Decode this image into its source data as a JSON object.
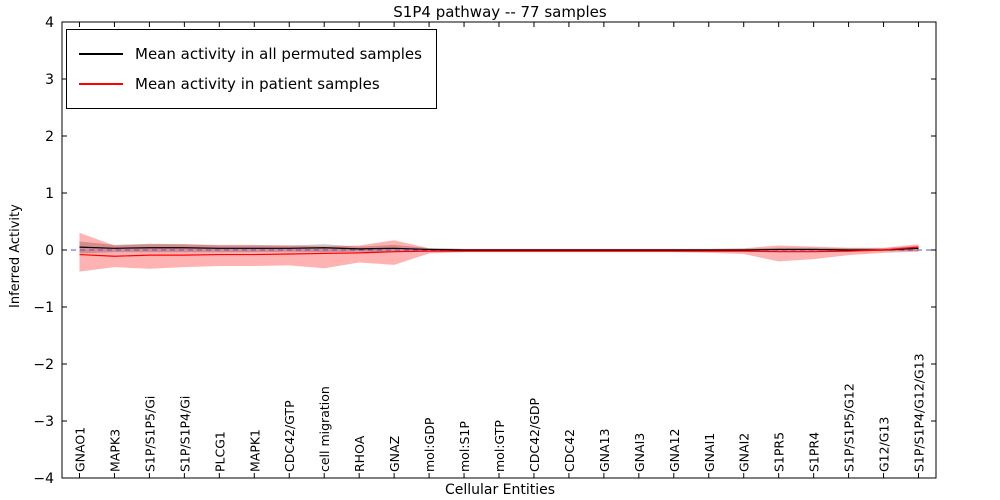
{
  "chart_data": {
    "type": "line",
    "title": "S1P4 pathway -- 77 samples",
    "xlabel": "Cellular Entities",
    "ylabel": "Inferred Activity",
    "ylim": [
      -4,
      4
    ],
    "yticks": [
      -4,
      -3,
      -2,
      -1,
      0,
      1,
      2,
      3,
      4
    ],
    "grid": false,
    "legend_position": "upper left",
    "refline": {
      "y": 0,
      "color": "#5555dd",
      "style": "dashed"
    },
    "categories": [
      "GNAO1",
      "MAPK3",
      "S1P/S1P5/Gi",
      "S1P/S1P4/Gi",
      "PLCG1",
      "MAPK1",
      "CDC42/GTP",
      "cell migration",
      "RHOA",
      "GNAZ",
      "mol:GDP",
      "mol:S1P",
      "mol:GTP",
      "CDC42/GDP",
      "CDC42",
      "GNA13",
      "GNAI3",
      "GNA12",
      "GNAI1",
      "GNAI2",
      "S1PR5",
      "S1PR4",
      "S1P/S1P5/G12",
      "G12/G13",
      "S1P/S1P4/G12/G13"
    ],
    "series": [
      {
        "name": "Mean activity in all permuted samples",
        "color": "#000000",
        "band_alpha": 0.22,
        "values": [
          0.05,
          0.03,
          0.04,
          0.04,
          0.03,
          0.03,
          0.03,
          0.04,
          0.02,
          0.03,
          0.01,
          0.0,
          0.0,
          0.0,
          0.0,
          0.0,
          0.0,
          0.0,
          0.0,
          0.0,
          0.01,
          0.01,
          0.0,
          0.0,
          0.03
        ],
        "band_upper": [
          0.15,
          0.09,
          0.11,
          0.1,
          0.09,
          0.09,
          0.08,
          0.1,
          0.06,
          0.09,
          0.03,
          0.02,
          0.02,
          0.02,
          0.02,
          0.02,
          0.02,
          0.02,
          0.02,
          0.02,
          0.04,
          0.04,
          0.03,
          0.03,
          0.07
        ],
        "band_lower": [
          -0.06,
          -0.04,
          -0.04,
          -0.04,
          -0.04,
          -0.04,
          -0.03,
          -0.04,
          -0.03,
          -0.04,
          -0.02,
          -0.02,
          -0.02,
          -0.02,
          -0.02,
          -0.02,
          -0.02,
          -0.02,
          -0.02,
          -0.02,
          -0.03,
          -0.03,
          -0.02,
          -0.02,
          -0.02
        ]
      },
      {
        "name": "Mean activity in patient samples",
        "color": "#ff0000",
        "band_alpha": 0.3,
        "values": [
          -0.08,
          -0.11,
          -0.09,
          -0.09,
          -0.08,
          -0.08,
          -0.07,
          -0.06,
          -0.05,
          -0.03,
          -0.02,
          -0.02,
          -0.02,
          -0.02,
          -0.02,
          -0.02,
          -0.02,
          -0.02,
          -0.02,
          -0.02,
          -0.03,
          -0.03,
          -0.02,
          0.0,
          0.05
        ],
        "band_upper": [
          0.3,
          0.08,
          0.1,
          0.1,
          0.08,
          0.08,
          0.08,
          0.06,
          0.08,
          0.17,
          0.03,
          0.02,
          0.02,
          0.02,
          0.02,
          0.02,
          0.02,
          0.02,
          0.02,
          0.03,
          0.08,
          0.06,
          0.04,
          0.04,
          0.1
        ],
        "band_lower": [
          -0.38,
          -0.3,
          -0.33,
          -0.3,
          -0.28,
          -0.28,
          -0.27,
          -0.32,
          -0.22,
          -0.26,
          -0.06,
          -0.04,
          -0.04,
          -0.04,
          -0.04,
          -0.04,
          -0.04,
          -0.04,
          -0.05,
          -0.07,
          -0.2,
          -0.16,
          -0.09,
          -0.05,
          -0.03
        ]
      }
    ]
  }
}
